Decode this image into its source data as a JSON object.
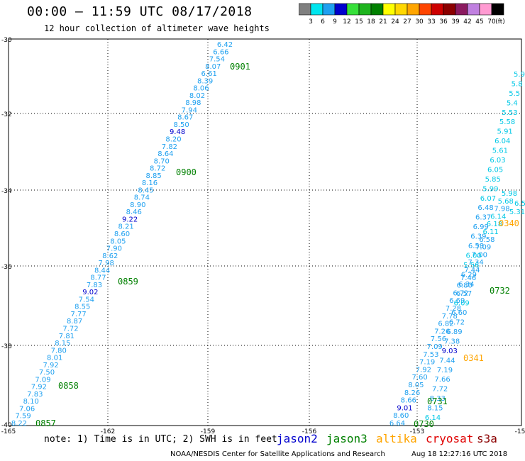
{
  "header": {
    "title": "00:00 — 11:59 UTC 08/17/2018",
    "subtitle": "12 hour collection of altimeter wave heights"
  },
  "colorbar": {
    "unit": "(ft)",
    "bins": [
      {
        "color": "#7f7f7f",
        "label": "3"
      },
      {
        "color": "#00e5ee",
        "label": "6"
      },
      {
        "color": "#1ea0f0",
        "label": "9"
      },
      {
        "color": "#0000cd",
        "label": "12"
      },
      {
        "color": "#36e03a",
        "label": "15"
      },
      {
        "color": "#1eb41e",
        "label": "18"
      },
      {
        "color": "#008000",
        "label": "21"
      },
      {
        "color": "#ffff00",
        "label": "24"
      },
      {
        "color": "#ffd700",
        "label": "27"
      },
      {
        "color": "#ffa500",
        "label": "30"
      },
      {
        "color": "#ff4500",
        "label": "33"
      },
      {
        "color": "#cd0000",
        "label": "36"
      },
      {
        "color": "#8b0000",
        "label": "39"
      },
      {
        "color": "#8b1a60",
        "label": "42"
      },
      {
        "color": "#c080e0",
        "label": "45"
      },
      {
        "color": "#ff9bd2",
        "label": "70"
      },
      {
        "color": "#000000",
        "label": ""
      }
    ]
  },
  "axes": {
    "lat_labels": [
      "-30",
      "-32",
      "-34",
      "-36",
      "-38",
      "-40"
    ],
    "lon_labels": [
      "-165",
      "-162",
      "-159",
      "-156",
      "-153",
      "-15"
    ]
  },
  "colors": {
    "light_blue": "#1ea0f0",
    "cyan": "#00c8e6",
    "dark_blue": "#0000cd",
    "green": "#008000",
    "orange": "#ffa500"
  },
  "track1": {
    "values": [
      "6.42",
      "6.66",
      "7.54",
      "8.07",
      "6.61",
      "8.39",
      "8.06",
      "8.02",
      "8.98",
      "7.94",
      "8.67",
      "8.50",
      "9.48",
      "8.20",
      "7.82",
      "8.64",
      "8.70",
      "8.72",
      "8.85",
      "8.16",
      "8.45",
      "8.74",
      "8.90",
      "8.46",
      "9.22",
      "8.21",
      "8.60",
      "8.05",
      "7.90",
      "8.62",
      "7.98",
      "8.44",
      "8.77",
      "7.83",
      "9.02",
      "7.54",
      "8.55",
      "7.77",
      "8.87",
      "7.72",
      "7.81",
      "8.15",
      "7.80",
      "8.01",
      "7.92",
      "7.50",
      "7.09",
      "7.92",
      "7.83",
      "8.10",
      "7.06",
      "7.59",
      "8.22"
    ],
    "dark_values": [
      "9.48",
      "9.22",
      "9.02"
    ],
    "times": [
      "0901",
      "0900",
      "0859",
      "0858",
      "0857"
    ]
  },
  "track2": {
    "values": [
      "6.64",
      "8.60",
      "9.01",
      "8.66",
      "8.26",
      "8.05",
      "7.60",
      "7.92",
      "7.19",
      "7.53",
      "7.09",
      "7.56",
      "7.26",
      "6.82",
      "7.78",
      "7.28",
      "6.69",
      "6.72",
      "6.80",
      "7.46",
      "7.44",
      "7.34",
      "7.00",
      "7.09",
      "6.58",
      "6.11",
      "6.18",
      "6.14",
      "7.98",
      "5.68",
      "5.98"
    ],
    "dark_values": [
      "9.01"
    ],
    "times": [
      "0731",
      "0730"
    ]
  },
  "track3": {
    "values": [
      "6.14",
      "8.15",
      "8.33",
      "7.72",
      "7.66",
      "7.19",
      "7.44",
      "9.03",
      "7.38",
      "6.89",
      "6.72",
      "6.60",
      "6.09",
      "6.57",
      "6.34",
      "6.29",
      "5.56",
      "6.00",
      "6.58",
      "6.39",
      "6.99",
      "6.37",
      "6.48",
      "6.07",
      "5.99",
      "5.85",
      "6.05",
      "6.03",
      "5.61",
      "6.04",
      "5.91",
      "5.58",
      "5.53",
      "5.4",
      "5.5",
      "5.8",
      "5.9"
    ],
    "dark_values": [
      "9.03"
    ],
    "times": [
      "0732"
    ]
  },
  "track4": {
    "values": [
      "5.31",
      "6.5"
    ],
    "times": [
      "0340",
      "0341"
    ]
  },
  "legend": {
    "note": "note: 1) Time is in UTC; 2) SWH is in feet",
    "items": [
      {
        "label": "jason2",
        "color": "#0000cd"
      },
      {
        "label": "jason3",
        "color": "#008000"
      },
      {
        "label": "altika",
        "color": "#ffa500"
      },
      {
        "label": "cryosat",
        "color": "#e00000"
      },
      {
        "label": "s3a",
        "color": "#8b0000"
      }
    ]
  },
  "footer": {
    "credit": "NOAA/NESDIS Center for Satellite Applications and Research",
    "timestamp": "Aug 18 12:27:16 UTC 2018"
  }
}
